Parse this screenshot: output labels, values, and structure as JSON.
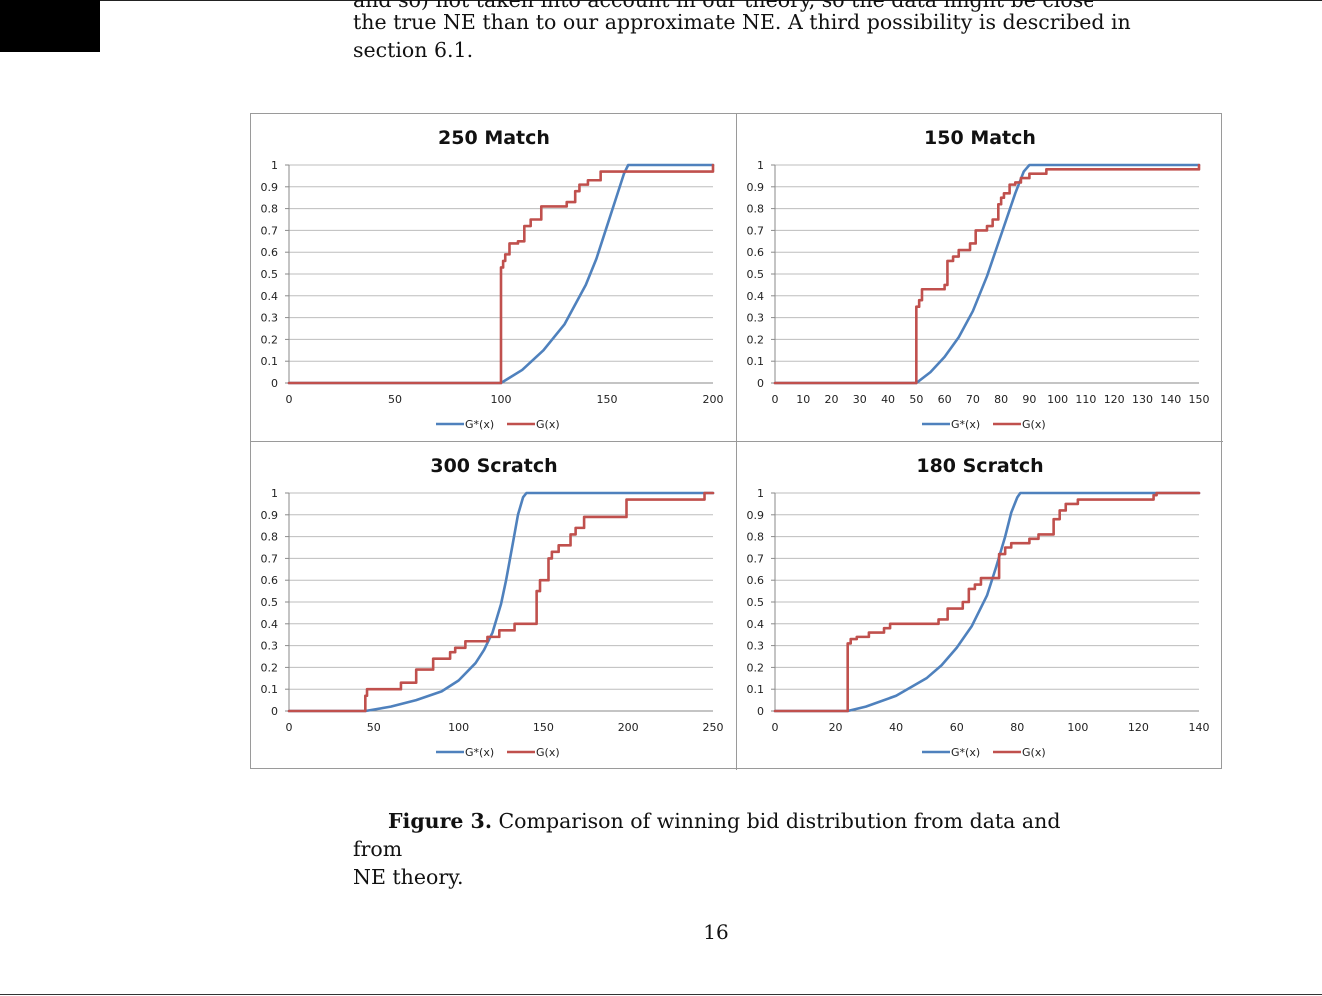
{
  "document": {
    "partial_line": "and so) not taken into account in our theory, so the data might be closer to",
    "body_lines": [
      "the true NE than to our approximate NE. A third possibility is described in",
      "section 6.1."
    ],
    "caption_label": "Figure 3.",
    "caption_text_line1": "Comparison of winning bid distribution from data and from",
    "caption_text_line2": "NE theory.",
    "page_number": "16"
  },
  "chart_data": [
    {
      "type": "line",
      "title": "250 Match",
      "xlim": [
        0,
        200
      ],
      "ylim": [
        0,
        1
      ],
      "xticks": [
        0,
        50,
        100,
        150,
        200
      ],
      "yticks": [
        "0",
        "0.1",
        "0.2",
        "0.3",
        "0.4",
        "0.5",
        "0.6",
        "0.7",
        "0.8",
        "0.9",
        "1"
      ],
      "grid": true,
      "legend_position": "bottom",
      "series": [
        {
          "name": "G*(x)",
          "color": "#4f81bd",
          "step": false,
          "points": [
            [
              0,
              0
            ],
            [
              100,
              0
            ],
            [
              110,
              0.06
            ],
            [
              120,
              0.15
            ],
            [
              130,
              0.27
            ],
            [
              140,
              0.45
            ],
            [
              145,
              0.57
            ],
            [
              150,
              0.72
            ],
            [
              155,
              0.87
            ],
            [
              158,
              0.96
            ],
            [
              160,
              1
            ],
            [
              200,
              1
            ]
          ]
        },
        {
          "name": "G(x)",
          "color": "#c0504d",
          "step": true,
          "points": [
            [
              0,
              0
            ],
            [
              100,
              0
            ],
            [
              100,
              0.53
            ],
            [
              101,
              0.56
            ],
            [
              102,
              0.59
            ],
            [
              104,
              0.64
            ],
            [
              108,
              0.65
            ],
            [
              111,
              0.72
            ],
            [
              114,
              0.75
            ],
            [
              119,
              0.81
            ],
            [
              131,
              0.83
            ],
            [
              135,
              0.88
            ],
            [
              137,
              0.91
            ],
            [
              141,
              0.93
            ],
            [
              147,
              0.97
            ],
            [
              200,
              0.97
            ],
            [
              200,
              1
            ]
          ]
        }
      ]
    },
    {
      "type": "line",
      "title": "150 Match",
      "xlim": [
        0,
        150
      ],
      "ylim": [
        0,
        1
      ],
      "xticks": [
        0,
        10,
        20,
        30,
        40,
        50,
        60,
        70,
        80,
        90,
        100,
        110,
        120,
        130,
        140,
        150
      ],
      "yticks": [
        "0",
        "0.1",
        "0.2",
        "0.3",
        "0.4",
        "0.5",
        "0.6",
        "0.7",
        "0.8",
        "0.9",
        "1"
      ],
      "grid": true,
      "legend_position": "bottom",
      "series": [
        {
          "name": "G*(x)",
          "color": "#4f81bd",
          "step": false,
          "points": [
            [
              0,
              0
            ],
            [
              50,
              0
            ],
            [
              55,
              0.05
            ],
            [
              60,
              0.12
            ],
            [
              65,
              0.21
            ],
            [
              70,
              0.33
            ],
            [
              75,
              0.49
            ],
            [
              80,
              0.68
            ],
            [
              85,
              0.87
            ],
            [
              88,
              0.97
            ],
            [
              90,
              1
            ],
            [
              150,
              1
            ]
          ]
        },
        {
          "name": "G(x)",
          "color": "#c0504d",
          "step": true,
          "points": [
            [
              0,
              0
            ],
            [
              49,
              0
            ],
            [
              50,
              0.35
            ],
            [
              51,
              0.38
            ],
            [
              52,
              0.43
            ],
            [
              60,
              0.45
            ],
            [
              61,
              0.56
            ],
            [
              63,
              0.58
            ],
            [
              65,
              0.61
            ],
            [
              69,
              0.64
            ],
            [
              71,
              0.7
            ],
            [
              75,
              0.72
            ],
            [
              77,
              0.75
            ],
            [
              79,
              0.82
            ],
            [
              80,
              0.85
            ],
            [
              81,
              0.87
            ],
            [
              83,
              0.91
            ],
            [
              85,
              0.92
            ],
            [
              87,
              0.94
            ],
            [
              90,
              0.96
            ],
            [
              96,
              0.98
            ],
            [
              150,
              0.98
            ],
            [
              150,
              1
            ]
          ]
        }
      ]
    },
    {
      "type": "line",
      "title": "300 Scratch",
      "xlim": [
        0,
        250
      ],
      "ylim": [
        0,
        1
      ],
      "xticks": [
        0,
        50,
        100,
        150,
        200,
        250
      ],
      "yticks": [
        "0",
        "0.1",
        "0.2",
        "0.3",
        "0.4",
        "0.5",
        "0.6",
        "0.7",
        "0.8",
        "0.9",
        "1"
      ],
      "grid": true,
      "legend_position": "bottom",
      "series": [
        {
          "name": "G*(x)",
          "color": "#4f81bd",
          "step": false,
          "points": [
            [
              0,
              0
            ],
            [
              45,
              0
            ],
            [
              60,
              0.02
            ],
            [
              75,
              0.05
            ],
            [
              90,
              0.09
            ],
            [
              100,
              0.14
            ],
            [
              110,
              0.22
            ],
            [
              115,
              0.28
            ],
            [
              120,
              0.36
            ],
            [
              125,
              0.49
            ],
            [
              128,
              0.6
            ],
            [
              132,
              0.77
            ],
            [
              135,
              0.9
            ],
            [
              138,
              0.98
            ],
            [
              140,
              1
            ],
            [
              250,
              1
            ]
          ]
        },
        {
          "name": "G(x)",
          "color": "#c0504d",
          "step": true,
          "points": [
            [
              0,
              0
            ],
            [
              44,
              0
            ],
            [
              45,
              0.07
            ],
            [
              46,
              0.1
            ],
            [
              66,
              0.13
            ],
            [
              75,
              0.19
            ],
            [
              85,
              0.24
            ],
            [
              95,
              0.27
            ],
            [
              98,
              0.29
            ],
            [
              104,
              0.32
            ],
            [
              117,
              0.34
            ],
            [
              124,
              0.37
            ],
            [
              133,
              0.4
            ],
            [
              146,
              0.55
            ],
            [
              148,
              0.6
            ],
            [
              153,
              0.7
            ],
            [
              155,
              0.73
            ],
            [
              159,
              0.76
            ],
            [
              166,
              0.81
            ],
            [
              169,
              0.84
            ],
            [
              174,
              0.89
            ],
            [
              199,
              0.97
            ],
            [
              245,
              0.97
            ],
            [
              245,
              1
            ],
            [
              250,
              1
            ]
          ]
        }
      ]
    },
    {
      "type": "line",
      "title": "180 Scratch",
      "xlim": [
        0,
        140
      ],
      "ylim": [
        0,
        1
      ],
      "xticks": [
        0,
        20,
        40,
        60,
        80,
        100,
        120,
        140
      ],
      "yticks": [
        "0",
        "0.1",
        "0.2",
        "0.3",
        "0.4",
        "0.5",
        "0.6",
        "0.7",
        "0.8",
        "0.9",
        "1"
      ],
      "grid": true,
      "legend_position": "bottom",
      "series": [
        {
          "name": "G*(x)",
          "color": "#4f81bd",
          "step": false,
          "points": [
            [
              0,
              0
            ],
            [
              24,
              0
            ],
            [
              30,
              0.02
            ],
            [
              40,
              0.07
            ],
            [
              50,
              0.15
            ],
            [
              55,
              0.21
            ],
            [
              60,
              0.29
            ],
            [
              65,
              0.39
            ],
            [
              70,
              0.53
            ],
            [
              73,
              0.66
            ],
            [
              76,
              0.8
            ],
            [
              78,
              0.91
            ],
            [
              80,
              0.98
            ],
            [
              81,
              1
            ],
            [
              140,
              1
            ]
          ]
        },
        {
          "name": "G(x)",
          "color": "#c0504d",
          "step": true,
          "points": [
            [
              0,
              0
            ],
            [
              24,
              0
            ],
            [
              24,
              0.31
            ],
            [
              25,
              0.33
            ],
            [
              27,
              0.34
            ],
            [
              31,
              0.36
            ],
            [
              36,
              0.38
            ],
            [
              38,
              0.4
            ],
            [
              54,
              0.42
            ],
            [
              57,
              0.47
            ],
            [
              62,
              0.5
            ],
            [
              64,
              0.56
            ],
            [
              66,
              0.58
            ],
            [
              68,
              0.61
            ],
            [
              74,
              0.72
            ],
            [
              76,
              0.75
            ],
            [
              78,
              0.77
            ],
            [
              84,
              0.79
            ],
            [
              87,
              0.81
            ],
            [
              92,
              0.88
            ],
            [
              94,
              0.92
            ],
            [
              96,
              0.95
            ],
            [
              100,
              0.97
            ],
            [
              125,
              0.99
            ],
            [
              126,
              1
            ],
            [
              140,
              1
            ]
          ]
        }
      ]
    }
  ]
}
